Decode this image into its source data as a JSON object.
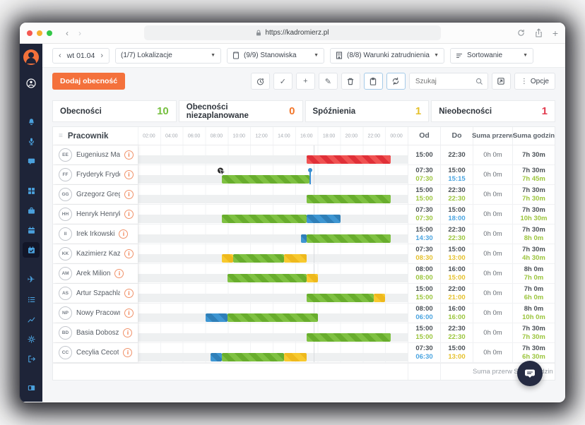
{
  "browser": {
    "url": "https://kadromierz.pl",
    "traffic_lights": [
      "close",
      "minimize",
      "zoom"
    ]
  },
  "sidebar": {
    "items": [
      "logo",
      "profile",
      "notifications",
      "microphone",
      "chat",
      "dashboard",
      "briefcase",
      "calendar",
      "schedule-active",
      "vacations",
      "tasks",
      "reports",
      "settings",
      "logout",
      "panel"
    ]
  },
  "filters": {
    "date": "wt 01.04",
    "lokalizacje": "(1/7) Lokalizacje",
    "stanowiska": "(9/9) Stanowiska",
    "warunki": "(8/8) Warunki zatrudnienia",
    "sortowanie": "Sortowanie"
  },
  "toolbar": {
    "add_label": "Dodaj obecność",
    "search_placeholder": "Szukaj",
    "options_label": "Opcje",
    "check_glyph": "✓",
    "plus_glyph": "+",
    "pencil_glyph": "✎",
    "dots_glyph": "⋮"
  },
  "stats": [
    {
      "label": "Obecności",
      "value": "10",
      "color": "#76bf3f"
    },
    {
      "label": "Obecności niezaplanowane",
      "value": "0",
      "color": "#f2762a"
    },
    {
      "label": "Spóźnienia",
      "value": "1",
      "color": "#e5c12c"
    },
    {
      "label": "Nieobecności",
      "value": "1",
      "color": "#e23b4e"
    }
  ],
  "table": {
    "header": {
      "pracownik": "Pracownik",
      "od": "Od",
      "do": "Do",
      "suma_przerw": "Suma przerw",
      "suma_godzin": "Suma godzin"
    },
    "time_labels": [
      "02:00",
      "04:00",
      "06:00",
      "08:00",
      "10:00",
      "12:00",
      "14:00",
      "16:00",
      "18:00",
      "20:00",
      "22:00",
      "00:00"
    ],
    "current_time_line": "15:40"
  },
  "rows": [
    {
      "initials": "EE",
      "name": "Eugeniusz Marek",
      "alert": true,
      "segments": [
        {
          "type": "red",
          "start": "15:00",
          "end": "22:30"
        }
      ],
      "od": "15:00",
      "od2": "",
      "od2c": "",
      "do": "22:30",
      "do2": "",
      "do2c": "",
      "przerwy": "0h 0m",
      "suma": "7h 30m",
      "suma2": "",
      "suma2c": ""
    },
    {
      "initials": "FF",
      "name": "Fryderyk Fryderykowski",
      "cursor": true,
      "pin": "15:15",
      "segments": [
        {
          "type": "green",
          "start": "07:30",
          "end": "15:15"
        }
      ],
      "od": "07:30",
      "od2": "07:30",
      "od2c": "g",
      "do": "15:00",
      "do2": "15:15",
      "do2c": "b",
      "przerwy": "0h 0m",
      "suma": "7h 30m",
      "suma2": "7h 45m",
      "suma2c": "g"
    },
    {
      "initials": "GG",
      "name": "Grzegorz Greg",
      "segments": [
        {
          "type": "green",
          "start": "15:00",
          "end": "22:30"
        }
      ],
      "od": "15:00",
      "od2": "15:00",
      "od2c": "g",
      "do": "22:30",
      "do2": "22:30",
      "do2c": "g",
      "przerwy": "0h 0m",
      "suma": "7h 30m",
      "suma2": "7h 30m",
      "suma2c": "g"
    },
    {
      "initials": "HH",
      "name": "Henryk Henrykowski",
      "segments": [
        {
          "type": "green",
          "start": "07:30",
          "end": "15:00"
        },
        {
          "type": "blue",
          "start": "15:00",
          "end": "18:00"
        }
      ],
      "od": "07:30",
      "od2": "07:30",
      "od2c": "g",
      "do": "15:00",
      "do2": "18:00",
      "do2c": "b",
      "przerwy": "0h 0m",
      "suma": "7h 30m",
      "suma2": "10h 30m",
      "suma2c": "g"
    },
    {
      "initials": "II",
      "name": "Irek Irkowski",
      "segments": [
        {
          "type": "blue",
          "start": "14:30",
          "end": "15:00"
        },
        {
          "type": "green",
          "start": "15:00",
          "end": "22:30"
        }
      ],
      "od": "15:00",
      "od2": "14:30",
      "od2c": "b",
      "do": "22:30",
      "do2": "22:30",
      "do2c": "g",
      "przerwy": "0h 0m",
      "suma": "7h 30m",
      "suma2": "8h 0m",
      "suma2c": "g"
    },
    {
      "initials": "KK",
      "name": "Kazimierz Kazik",
      "segments": [
        {
          "type": "yellow",
          "start": "07:30",
          "end": "08:30"
        },
        {
          "type": "green",
          "start": "08:30",
          "end": "13:00"
        },
        {
          "type": "yellow",
          "start": "13:00",
          "end": "15:00"
        }
      ],
      "od": "07:30",
      "od2": "08:30",
      "od2c": "y",
      "do": "15:00",
      "do2": "13:00",
      "do2c": "y",
      "przerwy": "0h 0m",
      "suma": "7h 30m",
      "suma2": "4h 30m",
      "suma2c": "g"
    },
    {
      "initials": "AM",
      "name": "Arek Milion",
      "segments": [
        {
          "type": "green",
          "start": "08:00",
          "end": "15:00"
        },
        {
          "type": "yellow",
          "start": "15:00",
          "end": "16:00"
        }
      ],
      "od": "08:00",
      "od2": "08:00",
      "od2c": "g",
      "do": "16:00",
      "do2": "15:00",
      "do2c": "y",
      "przerwy": "0h 0m",
      "suma": "8h 0m",
      "suma2": "7h 0m",
      "suma2c": "g"
    },
    {
      "initials": "AS",
      "name": "Artur Szpachla",
      "segments": [
        {
          "type": "green",
          "start": "15:00",
          "end": "21:00"
        },
        {
          "type": "yellow",
          "start": "21:00",
          "end": "22:00"
        }
      ],
      "od": "15:00",
      "od2": "15:00",
      "od2c": "g",
      "do": "22:00",
      "do2": "21:00",
      "do2c": "y",
      "przerwy": "0h 0m",
      "suma": "7h 0m",
      "suma2": "6h 0m",
      "suma2c": "g"
    },
    {
      "initials": "NP",
      "name": "Nowy Pracownik",
      "segments": [
        {
          "type": "blue",
          "start": "06:00",
          "end": "08:00"
        },
        {
          "type": "green",
          "start": "08:00",
          "end": "16:00"
        }
      ],
      "od": "08:00",
      "od2": "06:00",
      "od2c": "b",
      "do": "16:00",
      "do2": "16:00",
      "do2c": "g",
      "przerwy": "0h 0m",
      "suma": "8h 0m",
      "suma2": "10h 0m",
      "suma2c": "g"
    },
    {
      "initials": "BD",
      "name": "Basia Dobosz",
      "segments": [
        {
          "type": "green",
          "start": "15:00",
          "end": "22:30"
        }
      ],
      "od": "15:00",
      "od2": "15:00",
      "od2c": "g",
      "do": "22:30",
      "do2": "22:30",
      "do2c": "g",
      "przerwy": "0h 0m",
      "suma": "7h 30m",
      "suma2": "7h 30m",
      "suma2c": "g"
    },
    {
      "initials": "CC",
      "name": "Cecylia Cecot",
      "segments": [
        {
          "type": "blue",
          "start": "06:30",
          "end": "07:30"
        },
        {
          "type": "green",
          "start": "07:30",
          "end": "13:00"
        },
        {
          "type": "yellow",
          "start": "13:00",
          "end": "15:00"
        }
      ],
      "od": "07:30",
      "od2": "06:30",
      "od2c": "b",
      "do": "15:00",
      "do2": "13:00",
      "do2c": "y",
      "przerwy": "0h 0m",
      "suma": "7h 30m",
      "suma2": "6h 30m",
      "suma2c": "g"
    }
  ],
  "footer": {
    "suma_przerw": "Suma przerw",
    "suma_godzin": "Suma godzin"
  },
  "colors": {
    "accent_orange": "#f4713c",
    "bar_green": "#7fc142",
    "bar_blue": "#3e96d2",
    "bar_yellow": "#f7c92f",
    "bar_red": "#f05252",
    "sidebar_bg": "#1e2438",
    "sidebar_icon": "#4aa0dc"
  }
}
